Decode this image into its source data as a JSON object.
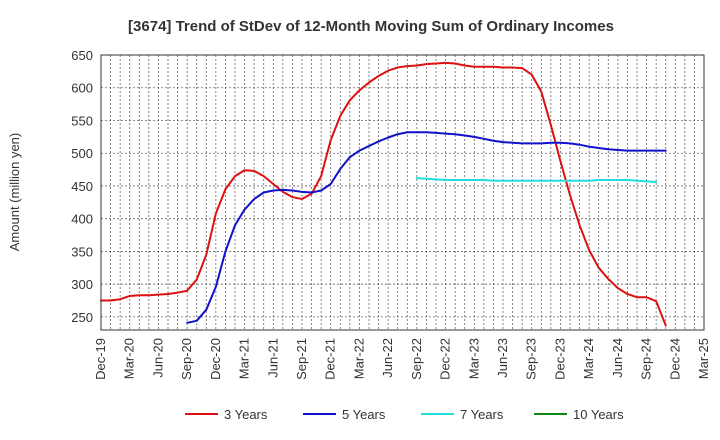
{
  "chart_data": {
    "type": "line",
    "title": "[3674]  Trend of StDev of 12-Month Moving Sum of Ordinary Incomes",
    "ylabel": "Amount (million yen)",
    "xlabel": "",
    "ylim": [
      230,
      650
    ],
    "yticks": [
      250,
      300,
      350,
      400,
      450,
      500,
      550,
      600,
      650
    ],
    "xticks": [
      "Dec-19",
      "Mar-20",
      "Jun-20",
      "Sep-20",
      "Dec-20",
      "Mar-21",
      "Jun-21",
      "Sep-21",
      "Dec-21",
      "Mar-22",
      "Jun-22",
      "Sep-22",
      "Dec-22",
      "Mar-23",
      "Jun-23",
      "Sep-23",
      "Dec-23",
      "Mar-24",
      "Jun-24",
      "Sep-24",
      "Dec-24",
      "Mar-25"
    ],
    "grid": true,
    "legend_position": "bottom",
    "series": [
      {
        "name": "3 Years",
        "color": "#dd1111",
        "start_index": 0,
        "values": [
          275,
          275,
          277,
          282,
          283,
          283,
          284,
          285,
          287,
          290,
          307,
          345,
          408,
          445,
          465,
          474,
          473,
          465,
          453,
          441,
          433,
          430,
          438,
          465,
          520,
          557,
          581,
          596,
          608,
          618,
          626,
          631,
          633,
          634,
          636,
          637,
          638,
          637,
          634,
          632,
          632,
          632,
          631,
          631,
          630,
          620,
          594,
          543,
          488,
          436,
          390,
          352,
          325,
          308,
          294,
          285,
          280,
          280,
          274,
          237
        ]
      },
      {
        "name": "5 Years",
        "color": "#1111cc",
        "start_index": 9,
        "values": [
          241,
          244,
          261,
          296,
          350,
          390,
          414,
          430,
          440,
          443,
          444,
          443,
          441,
          440,
          443,
          453,
          476,
          494,
          504,
          511,
          518,
          524,
          529,
          532,
          532,
          532,
          531,
          530,
          529,
          527,
          525,
          522,
          519,
          517,
          516,
          515,
          515,
          515,
          516,
          516,
          515,
          513,
          510,
          508,
          506,
          505,
          504,
          504,
          504,
          504,
          504
        ]
      },
      {
        "name": "7 Years",
        "color": "#22dddd",
        "start_index": 33,
        "values": [
          462,
          461,
          460,
          459,
          459,
          459,
          459,
          459,
          458,
          458,
          458,
          458,
          458,
          458,
          458,
          458,
          458,
          458,
          458,
          459,
          459,
          459,
          459,
          458,
          457,
          456
        ]
      },
      {
        "name": "10 Years",
        "color": "#118811",
        "start_index": 0,
        "values": []
      }
    ]
  }
}
